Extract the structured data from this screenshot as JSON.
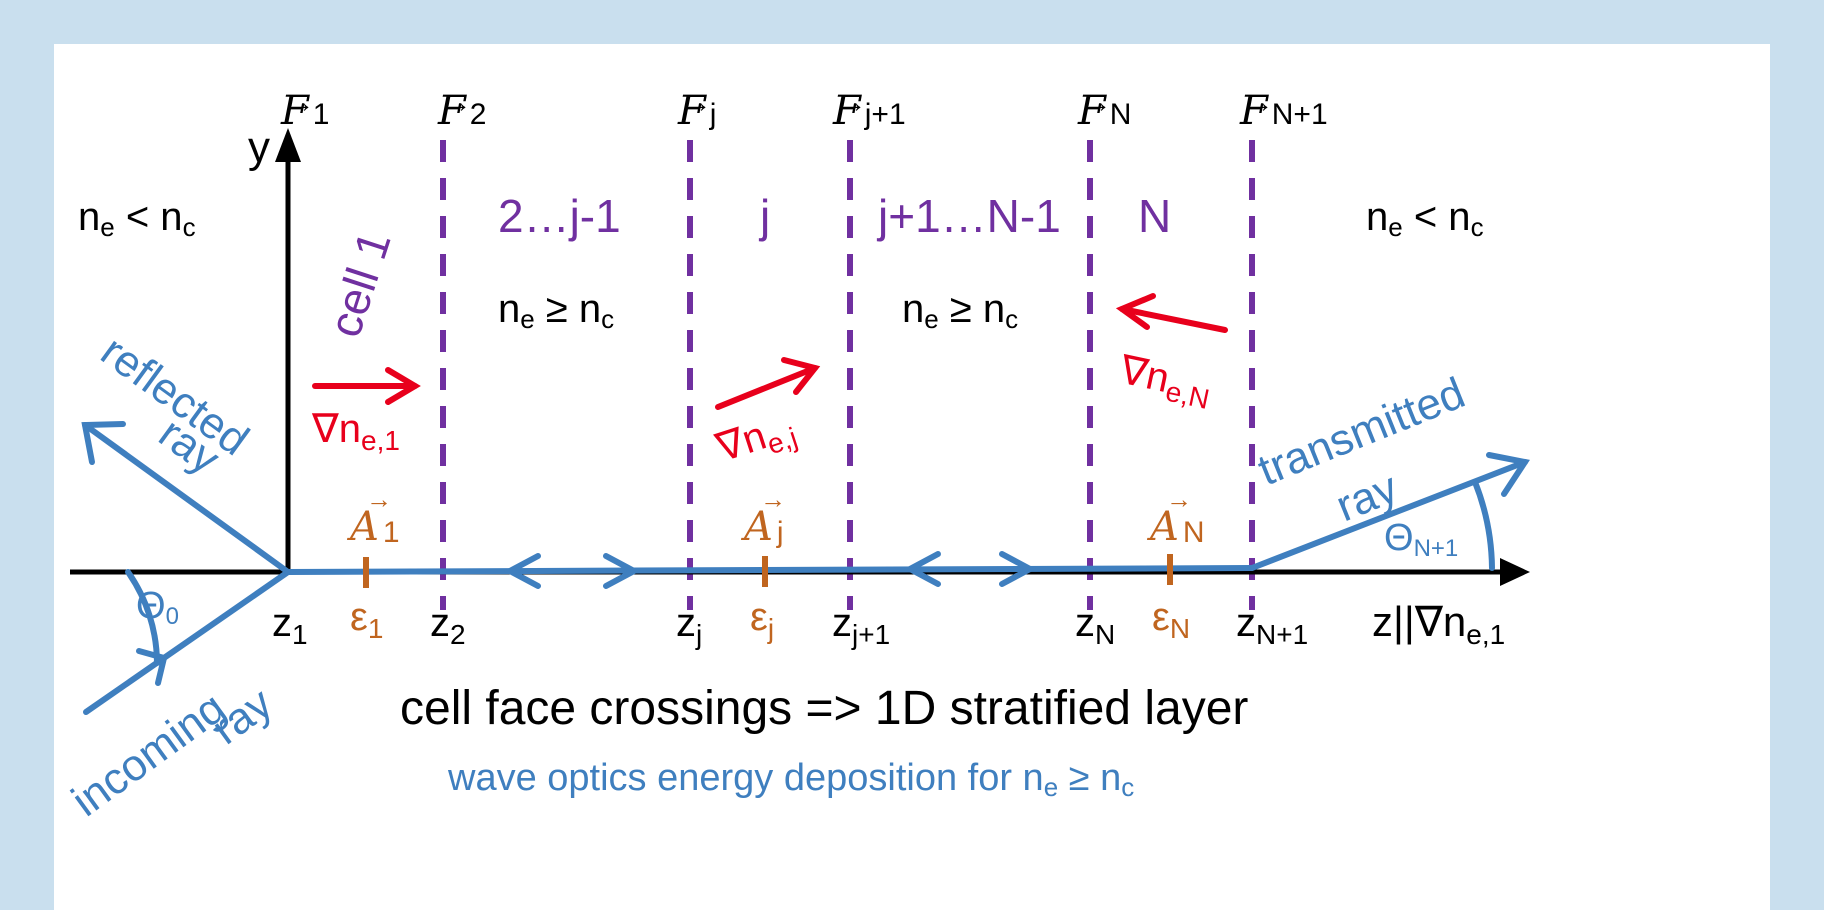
{
  "colors": {
    "frame": "#c9dfee",
    "panel": "#ffffff",
    "axis": "#000000",
    "ray": "#3f7fbf",
    "face": "#7030a0",
    "gradient": "#e8001c",
    "cell_quantity": "#c0651f"
  },
  "axes": {
    "y_label": "y",
    "z_label": "z||∇n",
    "z_label_sub": "e,1"
  },
  "faces": [
    {
      "F_sub": "1",
      "z_main": "z",
      "z_sub": "1"
    },
    {
      "F_sub": "2",
      "z_main": "z",
      "z_sub": "2"
    },
    {
      "F_sub": "j",
      "z_main": "z",
      "z_sub": "j"
    },
    {
      "F_sub": "j+1",
      "z_main": "z",
      "z_sub": "j+1"
    },
    {
      "F_sub": "N",
      "z_main": "z",
      "z_sub": "N"
    },
    {
      "F_sub": "N+1",
      "z_main": "z",
      "z_sub": "N+1"
    }
  ],
  "vector_symbol": "F",
  "area_symbol": "A",
  "eps_symbol": "ε",
  "cells": {
    "first": "cell 1",
    "range1": "2…j-1",
    "middle": "j",
    "range2": "j+1…N-1",
    "last": "N"
  },
  "cell_quantities": [
    {
      "A_sub": "1",
      "eps_sub": "1"
    },
    {
      "A_sub": "j",
      "eps_sub": "j"
    },
    {
      "A_sub": "N",
      "eps_sub": "N"
    }
  ],
  "density_labels": {
    "left": {
      "main": "n",
      "sub1": "e",
      "op": " < n",
      "sub2": "c"
    },
    "mid1": {
      "main": "n",
      "sub1": "e",
      "op": " ≥ n",
      "sub2": "c"
    },
    "mid2": {
      "main": "n",
      "sub1": "e",
      "op": " ≥ n",
      "sub2": "c"
    },
    "right": {
      "main": "n",
      "sub1": "e",
      "op": " < n",
      "sub2": "c"
    }
  },
  "gradients": [
    {
      "main": "∇n",
      "sub": "e,1"
    },
    {
      "main": "∇n",
      "sub": "e,j"
    },
    {
      "main": "∇n",
      "sub": "e,N"
    }
  ],
  "rays": {
    "reflected": [
      "reflected",
      "ray"
    ],
    "incoming": [
      "incoming",
      "ray"
    ],
    "transmitted": [
      "transmitted",
      "ray"
    ]
  },
  "angles": {
    "theta0": {
      "main": "Θ",
      "sub": "0"
    },
    "thetaN1": {
      "main": "Θ",
      "sub": "N+1"
    }
  },
  "caption": "cell face crossings => 1D stratified layer",
  "subcaption": {
    "prefix": "wave optics energy deposition for n",
    "sub1": "e",
    "op": " ≥ n",
    "sub2": "c"
  }
}
